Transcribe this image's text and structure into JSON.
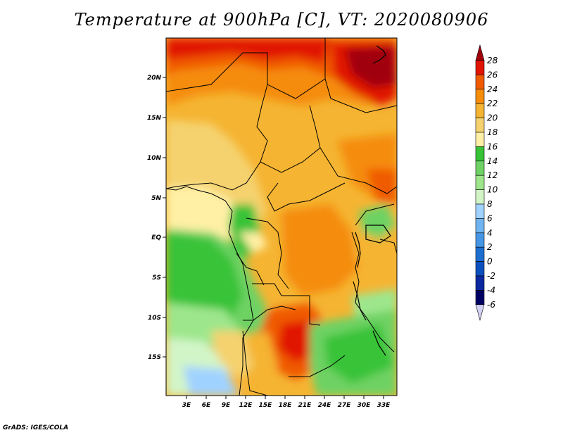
{
  "title": "Temperature at 900hPa [C], VT: 2020080906",
  "credit": "GrADS: IGES/COLA",
  "map": {
    "lat_labels": [
      "20N",
      "15N",
      "10N",
      "5N",
      "EQ",
      "5S",
      "10S",
      "15S"
    ],
    "lon_labels": [
      "3E",
      "6E",
      "9E",
      "12E",
      "15E",
      "18E",
      "21E",
      "24E",
      "27E",
      "30E",
      "33E"
    ]
  },
  "colorbar": {
    "levels": [
      "28",
      "26",
      "24",
      "22",
      "20",
      "18",
      "16",
      "14",
      "12",
      "10",
      "8",
      "6",
      "4",
      "2",
      "0",
      "-2",
      "-4",
      "-6"
    ],
    "colors": [
      "#a0000a",
      "#e11400",
      "#f05a00",
      "#f58c0a",
      "#f5b432",
      "#f5d26e",
      "#fff0a5",
      "#37c337",
      "#6ed264",
      "#9ee68c",
      "#d2f5c8",
      "#a0d2ff",
      "#6eb4f0",
      "#4696e6",
      "#1e6ed2",
      "#0a50be",
      "#0a28a0",
      "#000064",
      "#d2d2f5"
    ]
  }
}
